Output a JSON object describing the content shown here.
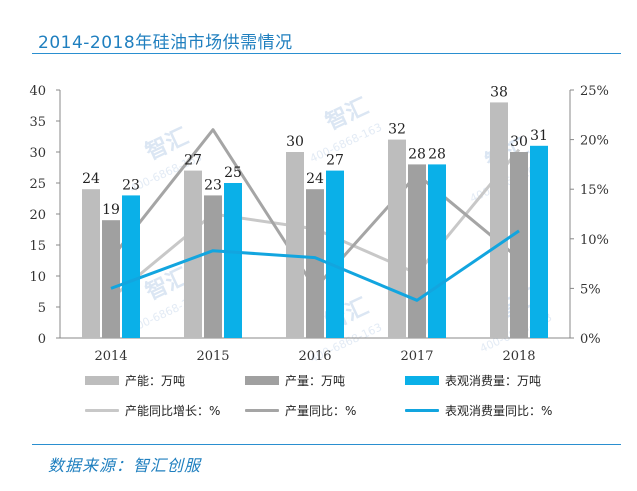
{
  "title": "2014-2018年硅油市场供需情况",
  "source": "数据来源：智汇创服",
  "watermark": {
    "logo": "智汇",
    "phone": "400-6868-163"
  },
  "colors": {
    "capacity": "#bdbdbd",
    "output": "#a0a0a0",
    "consumption": "#0ab0e8",
    "capacity_growth": "#c8c8c8",
    "output_growth": "#a5a5a5",
    "consumption_growth": "#12a5df",
    "accent": "#1f7fbf"
  },
  "chart_data": {
    "type": "bar",
    "categories": [
      "2014",
      "2015",
      "2016",
      "2017",
      "2018"
    ],
    "series": [
      {
        "name": "产能：万吨",
        "values": [
          24,
          27,
          30,
          32,
          38
        ],
        "axis": "left",
        "kind": "bar"
      },
      {
        "name": "产量：万吨",
        "values": [
          19,
          23,
          24,
          28,
          30
        ],
        "axis": "left",
        "kind": "bar"
      },
      {
        "name": "表观消费量：万吨",
        "values": [
          23,
          25,
          27,
          28,
          31
        ],
        "axis": "left",
        "kind": "bar"
      },
      {
        "name": "产能同比增长：%",
        "values": [
          4,
          12.5,
          11,
          6.5,
          19
        ],
        "axis": "right",
        "kind": "line"
      },
      {
        "name": "产量同比：%",
        "values": [
          8,
          21,
          5,
          16.5,
          8
        ],
        "axis": "right",
        "kind": "line"
      },
      {
        "name": "表观消费量同比：%",
        "values": [
          5,
          8.8,
          8.1,
          3.8,
          10.8
        ],
        "axis": "right",
        "kind": "line"
      }
    ],
    "ylim_left": [
      0,
      40
    ],
    "yticks_left": [
      "0",
      "5",
      "10",
      "15",
      "20",
      "25",
      "30",
      "35",
      "40"
    ],
    "ylim_right": [
      0,
      25
    ],
    "yticks_right": [
      "0%",
      "5%",
      "10%",
      "15%",
      "20%",
      "25%"
    ],
    "grid": false,
    "legend_position": "bottom"
  }
}
